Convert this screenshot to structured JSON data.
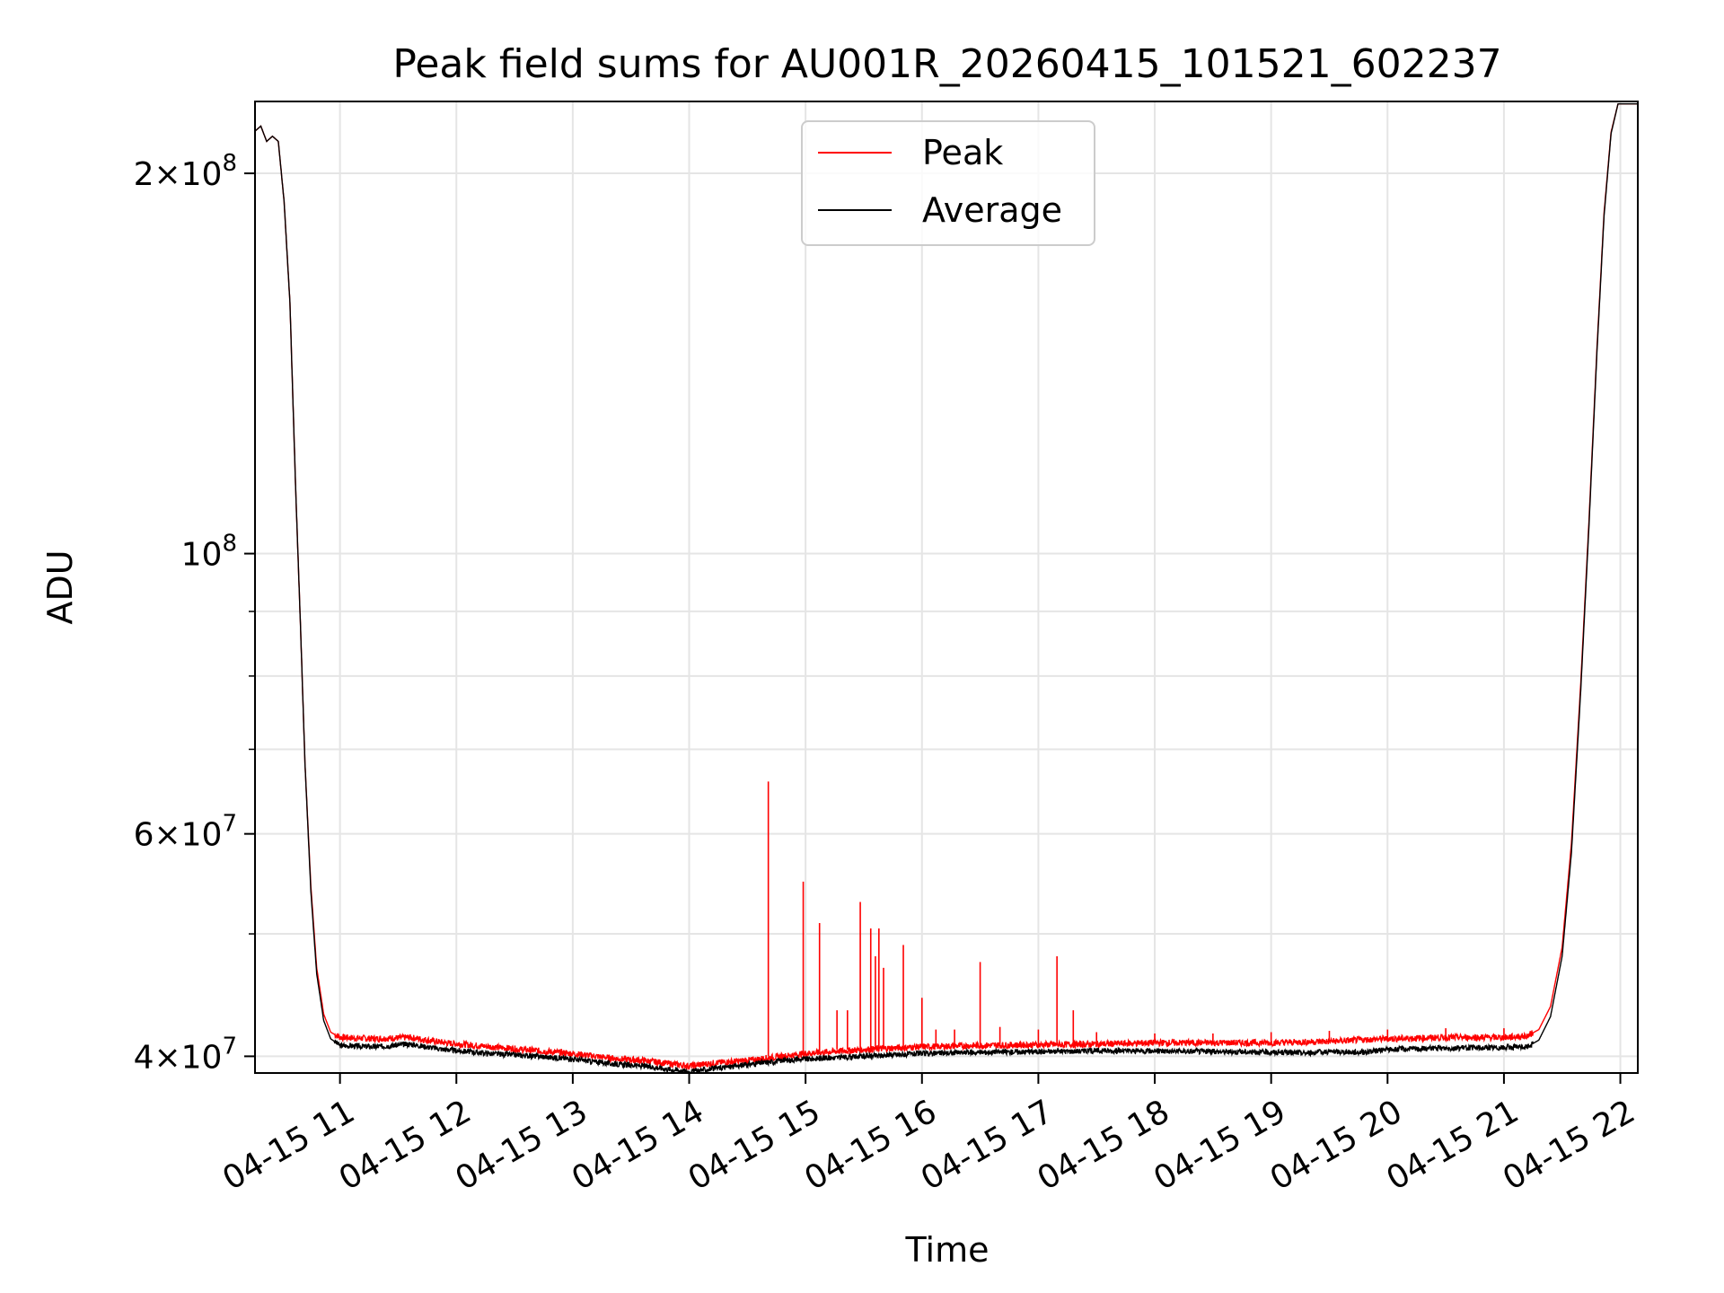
{
  "chart_data": {
    "type": "line",
    "title": "Peak field sums for AU001R_20260415_101521_602237",
    "xlabel": "Time",
    "ylabel": "ADU",
    "yscale": "log",
    "grid": true,
    "xlim": [
      10.27,
      22.15
    ],
    "ylim": [
      38800000,
      228000000
    ],
    "x_ticks": [
      {
        "value": 11,
        "label": "04-15 11"
      },
      {
        "value": 12,
        "label": "04-15 12"
      },
      {
        "value": 13,
        "label": "04-15 13"
      },
      {
        "value": 14,
        "label": "04-15 14"
      },
      {
        "value": 15,
        "label": "04-15 15"
      },
      {
        "value": 16,
        "label": "04-15 16"
      },
      {
        "value": 17,
        "label": "04-15 17"
      },
      {
        "value": 18,
        "label": "04-15 18"
      },
      {
        "value": 19,
        "label": "04-15 19"
      },
      {
        "value": 20,
        "label": "04-15 20"
      },
      {
        "value": 21,
        "label": "04-15 21"
      },
      {
        "value": 22,
        "label": "04-15 22"
      }
    ],
    "y_major_ticks": [
      {
        "value": 40000000,
        "mantissa": "4",
        "exponent": "7"
      },
      {
        "value": 60000000,
        "mantissa": "6",
        "exponent": "7"
      },
      {
        "value": 100000000,
        "mantissa": "",
        "exponent": "8"
      },
      {
        "value": 200000000,
        "mantissa": "2",
        "exponent": "8"
      }
    ],
    "y_minor_ticks": [
      50000000,
      70000000,
      80000000,
      90000000
    ],
    "legend": {
      "placement": "upper-center",
      "entries": [
        {
          "label": "Peak",
          "color": "#ff0000"
        },
        {
          "label": "Average",
          "color": "#000000"
        }
      ]
    },
    "series": [
      {
        "name": "Average",
        "color": "#000000",
        "points": [
          [
            10.27,
            216000000
          ],
          [
            10.32,
            218000000
          ],
          [
            10.37,
            212000000
          ],
          [
            10.42,
            214000000
          ],
          [
            10.47,
            212000000
          ],
          [
            10.52,
            190000000
          ],
          [
            10.57,
            158000000
          ],
          [
            10.62,
            112000000
          ],
          [
            10.66,
            88000000
          ],
          [
            10.7,
            68000000
          ],
          [
            10.75,
            54000000
          ],
          [
            10.8,
            46500000
          ],
          [
            10.86,
            42700000
          ],
          [
            10.92,
            41300000
          ],
          [
            11.0,
            40800000
          ],
          [
            11.3,
            40700000
          ],
          [
            11.6,
            40900000
          ],
          [
            11.9,
            40500000
          ],
          [
            12.3,
            40200000
          ],
          [
            12.7,
            40000000
          ],
          [
            13.0,
            39800000
          ],
          [
            13.2,
            39600000
          ],
          [
            13.4,
            39400000
          ],
          [
            13.6,
            39300000
          ],
          [
            13.8,
            39100000
          ],
          [
            14.0,
            38900000
          ],
          [
            14.2,
            39100000
          ],
          [
            14.5,
            39400000
          ],
          [
            14.8,
            39700000
          ],
          [
            15.0,
            39800000
          ],
          [
            15.5,
            40000000
          ],
          [
            16.0,
            40200000
          ],
          [
            16.5,
            40300000
          ],
          [
            17.0,
            40350000
          ],
          [
            17.5,
            40400000
          ],
          [
            18.0,
            40400000
          ],
          [
            18.5,
            40350000
          ],
          [
            19.0,
            40300000
          ],
          [
            19.3,
            40250000
          ],
          [
            19.5,
            40350000
          ],
          [
            19.8,
            40300000
          ],
          [
            20.0,
            40500000
          ],
          [
            20.5,
            40600000
          ],
          [
            21.0,
            40650000
          ],
          [
            21.2,
            40700000
          ],
          [
            21.3,
            41200000
          ],
          [
            21.4,
            43000000
          ],
          [
            21.5,
            48000000
          ],
          [
            21.58,
            58000000
          ],
          [
            21.66,
            78000000
          ],
          [
            21.73,
            105000000
          ],
          [
            21.8,
            145000000
          ],
          [
            21.86,
            185000000
          ],
          [
            21.92,
            215000000
          ],
          [
            21.98,
            227000000
          ],
          [
            22.15,
            227000000
          ]
        ]
      },
      {
        "name": "Peak",
        "color": "#ff0000",
        "points": [
          [
            10.27,
            216000000
          ],
          [
            10.32,
            218000000
          ],
          [
            10.37,
            212000000
          ],
          [
            10.42,
            214000000
          ],
          [
            10.47,
            212000000
          ],
          [
            10.52,
            190000000
          ],
          [
            10.57,
            158000000
          ],
          [
            10.62,
            112000000
          ],
          [
            10.66,
            88000000
          ],
          [
            10.7,
            68000000
          ],
          [
            10.75,
            54500000
          ],
          [
            10.8,
            47000000
          ],
          [
            10.86,
            43200000
          ],
          [
            10.92,
            41800000
          ],
          [
            11.0,
            41400000
          ],
          [
            11.3,
            41300000
          ],
          [
            11.6,
            41400000
          ],
          [
            11.9,
            41000000
          ],
          [
            12.3,
            40700000
          ],
          [
            12.7,
            40400000
          ],
          [
            13.0,
            40200000
          ],
          [
            13.2,
            40000000
          ],
          [
            13.4,
            39800000
          ],
          [
            13.6,
            39700000
          ],
          [
            13.8,
            39500000
          ],
          [
            14.0,
            39300000
          ],
          [
            14.2,
            39500000
          ],
          [
            14.5,
            39700000
          ],
          [
            14.8,
            40000000
          ],
          [
            15.0,
            40200000
          ],
          [
            15.5,
            40500000
          ],
          [
            16.0,
            40700000
          ],
          [
            16.5,
            40800000
          ],
          [
            17.0,
            40850000
          ],
          [
            17.5,
            40900000
          ],
          [
            18.0,
            41000000
          ],
          [
            18.5,
            41000000
          ],
          [
            19.0,
            41000000
          ],
          [
            19.5,
            41100000
          ],
          [
            20.0,
            41300000
          ],
          [
            20.5,
            41400000
          ],
          [
            21.0,
            41400000
          ],
          [
            21.2,
            41500000
          ],
          [
            21.3,
            42000000
          ],
          [
            21.4,
            43800000
          ],
          [
            21.5,
            48800000
          ],
          [
            21.58,
            59000000
          ],
          [
            21.66,
            79000000
          ],
          [
            21.73,
            106000000
          ],
          [
            21.8,
            146000000
          ],
          [
            21.86,
            186000000
          ],
          [
            21.92,
            215500000
          ],
          [
            21.98,
            227000000
          ],
          [
            22.15,
            227000000
          ]
        ],
        "spikes": [
          [
            14.68,
            66000000
          ],
          [
            14.98,
            55000000
          ],
          [
            15.12,
            51000000
          ],
          [
            15.27,
            43500000
          ],
          [
            15.36,
            43500000
          ],
          [
            15.47,
            53000000
          ],
          [
            15.56,
            50500000
          ],
          [
            15.6,
            48000000
          ],
          [
            15.63,
            50500000
          ],
          [
            15.67,
            47000000
          ],
          [
            15.84,
            49000000
          ],
          [
            16.0,
            44500000
          ],
          [
            16.12,
            42000000
          ],
          [
            16.28,
            42000000
          ],
          [
            16.5,
            47500000
          ],
          [
            16.67,
            42200000
          ],
          [
            17.0,
            42000000
          ],
          [
            17.16,
            48000000
          ],
          [
            17.3,
            43500000
          ],
          [
            17.5,
            41800000
          ],
          [
            18.0,
            41700000
          ],
          [
            18.5,
            41700000
          ],
          [
            19.0,
            41800000
          ],
          [
            19.5,
            41900000
          ],
          [
            20.0,
            42000000
          ],
          [
            20.5,
            42100000
          ],
          [
            21.0,
            42100000
          ]
        ]
      }
    ]
  }
}
